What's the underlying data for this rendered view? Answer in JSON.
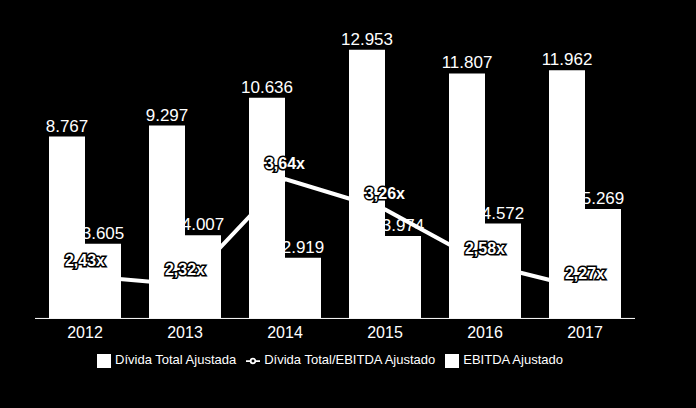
{
  "chart_data": {
    "type": "bar",
    "categories": [
      "2012",
      "2013",
      "2014",
      "2015",
      "2016",
      "2017"
    ],
    "series": [
      {
        "name": "Dívida Total Ajustada",
        "type": "bar",
        "color": "#ffffff",
        "values": [
          8767,
          9297,
          10636,
          12953,
          11807,
          11962
        ],
        "value_labels": [
          "8.767",
          "9.297",
          "10.636",
          "12.953",
          "11.807",
          "11.962"
        ]
      },
      {
        "name": "EBITDA Ajustado",
        "type": "bar",
        "color": "#ffffff",
        "values": [
          3605,
          4007,
          2919,
          3974,
          4572,
          5269
        ],
        "value_labels": [
          "3.605",
          "4.007",
          "2.919",
          "3.974",
          "4.572",
          "5.269"
        ]
      },
      {
        "name": "Dívida Total/EBITDA Ajustado",
        "type": "line",
        "axis": "y2",
        "color": "#ffffff",
        "values": [
          2.43,
          2.32,
          3.64,
          3.26,
          2.58,
          2.27
        ],
        "value_labels": [
          "2,43x",
          "2,32x",
          "3,64x",
          "3,26x",
          "2,58x",
          "2,27x"
        ]
      }
    ],
    "ylim": [
      0,
      13900
    ],
    "y2lim": [
      1.9,
      5.5
    ],
    "data_labels": true,
    "tick_labels": "x",
    "legend": "bottom"
  }
}
